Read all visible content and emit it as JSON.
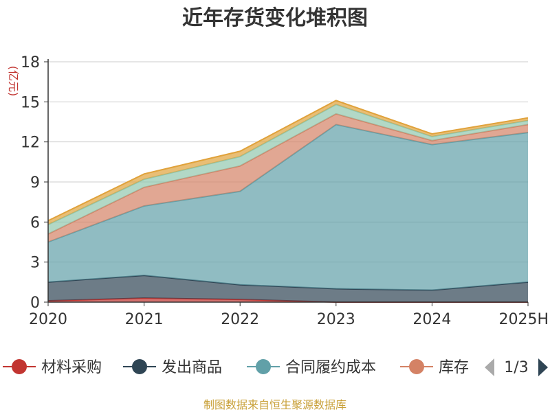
{
  "chart_data": {
    "type": "area",
    "stacked": true,
    "title": "近年存货变化堆积图",
    "unit": "(亿元)",
    "categories": [
      "2020",
      "2021",
      "2022",
      "2023",
      "2024",
      "2025H"
    ],
    "ylim": [
      0,
      18
    ],
    "yticks": [
      "0",
      "3",
      "6",
      "9",
      "12",
      "15",
      "18"
    ],
    "grid": true,
    "legend_position": "bottom",
    "series": [
      {
        "name": "材料采购",
        "color": "#c23531",
        "values": [
          0.1,
          0.3,
          0.2,
          0.0,
          0.0,
          0.0
        ]
      },
      {
        "name": "发出商品",
        "color": "#2f4554",
        "values": [
          1.4,
          1.7,
          1.1,
          1.0,
          0.9,
          1.5
        ]
      },
      {
        "name": "合同履约成本",
        "color": "#61a0a8",
        "values": [
          3.0,
          5.2,
          7.0,
          12.3,
          10.9,
          11.2
        ]
      },
      {
        "name": "库存",
        "color": "#d48265",
        "values": [
          0.6,
          1.4,
          1.9,
          0.8,
          0.3,
          0.6
        ]
      },
      {
        "name": "",
        "color": "#91c7ae",
        "values": [
          0.7,
          0.6,
          0.7,
          0.7,
          0.3,
          0.3
        ]
      },
      {
        "name": "",
        "color": "#e0a23b",
        "values": [
          0.3,
          0.4,
          0.4,
          0.3,
          0.2,
          0.2
        ]
      }
    ]
  },
  "legend": {
    "page_indicator": "1/3"
  },
  "source_note": "制图数据来自恒生聚源数据库"
}
